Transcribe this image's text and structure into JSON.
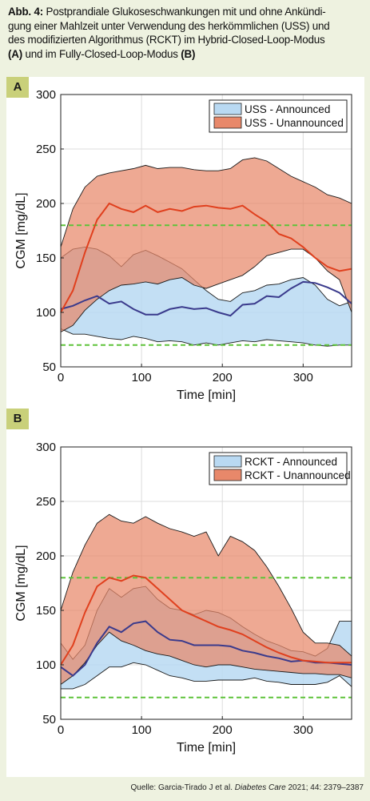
{
  "caption": {
    "prefix": "Abb. 4:",
    "line1": " Postprandiale Glukoseschwankungen mit und ohne Ankündi-",
    "line2": "gung einer Mahlzeit unter Verwendung des herkömmlichen (USS) und",
    "line3": "des modifizierten Algorithmus (RCKT) im Hybrid-Closed-Loop-Modus",
    "label_a": "(A)",
    "mid": " und im Fully-Closed-Loop-Modus ",
    "label_b": "(B)"
  },
  "panels": {
    "a_label": "A",
    "b_label": "B"
  },
  "source": {
    "prefix": "Quelle: Garcia-Tirado J et al. ",
    "journal": "Diabetes Care",
    "suffix": " 2021; 44: 2379–2387"
  },
  "colors": {
    "announced_fill": "#b9d9f2",
    "unannounced_fill": "#e8886a",
    "announced_line": "#3a3a8c",
    "unannounced_line": "#e0401e",
    "threshold": "#5fc33a",
    "badge": "#c9d07a",
    "background": "#eef2e0"
  },
  "chart_data": [
    {
      "type": "area",
      "panel": "A",
      "xlabel": "Time [min]",
      "ylabel": "CGM [mg/dL]",
      "xlim": [
        0,
        360
      ],
      "ylim": [
        50,
        300
      ],
      "xticks": [
        0,
        100,
        200,
        300
      ],
      "yticks": [
        50,
        100,
        150,
        200,
        250,
        300
      ],
      "grid": true,
      "legend_position": "top-right",
      "thresholds": [
        70,
        180
      ],
      "x": [
        0,
        15,
        30,
        45,
        60,
        75,
        90,
        105,
        120,
        135,
        150,
        165,
        180,
        195,
        210,
        225,
        240,
        255,
        270,
        285,
        300,
        315,
        330,
        345,
        360
      ],
      "series": [
        {
          "name": "USS - Announced",
          "mean": [
            103,
            106,
            111,
            115,
            108,
            110,
            103,
            98,
            98,
            103,
            105,
            103,
            104,
            100,
            97,
            107,
            108,
            115,
            114,
            122,
            128,
            127,
            123,
            118,
            108
          ],
          "upper": [
            150,
            158,
            160,
            158,
            152,
            142,
            153,
            157,
            152,
            146,
            140,
            130,
            120,
            112,
            110,
            118,
            120,
            125,
            126,
            130,
            132,
            125,
            112,
            106,
            110
          ],
          "lower": [
            85,
            80,
            80,
            78,
            76,
            75,
            78,
            76,
            73,
            74,
            73,
            70,
            72,
            70,
            72,
            74,
            73,
            75,
            74,
            73,
            72,
            70,
            69,
            70,
            70
          ]
        },
        {
          "name": "USS - Unannounced",
          "mean": [
            100,
            120,
            155,
            185,
            200,
            195,
            192,
            198,
            192,
            195,
            193,
            197,
            198,
            196,
            195,
            198,
            190,
            183,
            172,
            168,
            160,
            150,
            142,
            138,
            140
          ],
          "upper": [
            160,
            195,
            215,
            225,
            228,
            230,
            232,
            235,
            232,
            233,
            233,
            231,
            230,
            230,
            232,
            240,
            242,
            239,
            232,
            225,
            220,
            215,
            208,
            205,
            200
          ],
          "lower": [
            82,
            88,
            102,
            112,
            120,
            125,
            126,
            128,
            126,
            130,
            132,
            125,
            122,
            126,
            130,
            134,
            142,
            152,
            155,
            158,
            158,
            150,
            138,
            130,
            100
          ]
        }
      ]
    },
    {
      "type": "area",
      "panel": "B",
      "xlabel": "Time [min]",
      "ylabel": "CGM [mg/dL]",
      "xlim": [
        0,
        360
      ],
      "ylim": [
        50,
        300
      ],
      "xticks": [
        0,
        100,
        200,
        300
      ],
      "yticks": [
        50,
        100,
        150,
        200,
        250,
        300
      ],
      "grid": true,
      "legend_position": "top-right",
      "thresholds": [
        70,
        180
      ],
      "x": [
        0,
        15,
        30,
        45,
        60,
        75,
        90,
        105,
        120,
        135,
        150,
        165,
        180,
        195,
        210,
        225,
        240,
        255,
        270,
        285,
        300,
        315,
        330,
        345,
        360
      ],
      "series": [
        {
          "name": "RCKT - Announced",
          "mean": [
            98,
            90,
            100,
            120,
            135,
            130,
            138,
            140,
            130,
            123,
            122,
            118,
            118,
            118,
            117,
            113,
            111,
            108,
            106,
            103,
            104,
            102,
            102,
            101,
            100
          ],
          "upper": [
            120,
            105,
            118,
            150,
            170,
            162,
            170,
            172,
            160,
            152,
            150,
            146,
            150,
            148,
            143,
            135,
            128,
            122,
            118,
            113,
            112,
            108,
            115,
            140,
            140
          ],
          "lower": [
            78,
            78,
            82,
            90,
            98,
            98,
            102,
            100,
            95,
            90,
            88,
            85,
            85,
            86,
            86,
            86,
            88,
            85,
            84,
            82,
            82,
            82,
            84,
            90,
            80
          ]
        },
        {
          "name": "RCKT - Unannounced",
          "mean": [
            100,
            118,
            148,
            172,
            180,
            177,
            182,
            180,
            170,
            160,
            150,
            145,
            140,
            135,
            132,
            128,
            122,
            116,
            111,
            107,
            104,
            103,
            102,
            102,
            102
          ],
          "upper": [
            150,
            185,
            210,
            230,
            238,
            232,
            230,
            236,
            230,
            225,
            222,
            218,
            222,
            200,
            218,
            213,
            205,
            190,
            172,
            152,
            130,
            120,
            120,
            118,
            108
          ],
          "lower": [
            82,
            90,
            102,
            118,
            130,
            122,
            118,
            113,
            110,
            108,
            104,
            100,
            98,
            100,
            100,
            98,
            96,
            95,
            94,
            93,
            92,
            92,
            91,
            91,
            88
          ]
        }
      ]
    }
  ]
}
